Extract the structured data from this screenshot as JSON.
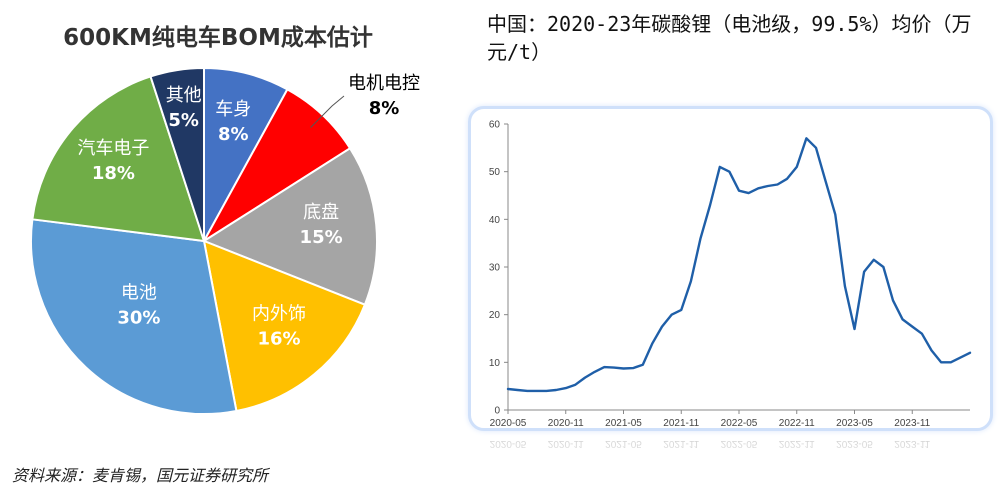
{
  "chart_data": [
    {
      "type": "pie",
      "title": "600KM纯电车BOM成本估计",
      "slices": [
        {
          "name": "车身",
          "value": 8,
          "label": "8%",
          "color": "#4472c4",
          "text_color": "#ffffff"
        },
        {
          "name": "电机电控",
          "value": 8,
          "label": "8%",
          "color": "#ff0000",
          "text_color": "#000000"
        },
        {
          "name": "底盘",
          "value": 15,
          "label": "15%",
          "color": "#a5a5a5",
          "text_color": "#ffffff"
        },
        {
          "name": "内外饰",
          "value": 16,
          "label": "16%",
          "color": "#ffc000",
          "text_color": "#ffffff"
        },
        {
          "name": "电池",
          "value": 30,
          "label": "30%",
          "color": "#5b9bd5",
          "text_color": "#ffffff"
        },
        {
          "name": "汽车电子",
          "value": 18,
          "label": "18%",
          "color": "#70ad47",
          "text_color": "#ffffff"
        },
        {
          "name": "其他",
          "value": 5,
          "label": "5%",
          "color": "#203864",
          "text_color": "#ffffff"
        }
      ]
    },
    {
      "type": "line",
      "title": "中国：2020-23年碳酸锂（电池级，99.5%）均价（万元/t）",
      "ylim": [
        0,
        60
      ],
      "yticks": [
        "0",
        "10",
        "20",
        "30",
        "40",
        "50",
        "60"
      ],
      "xticks": [
        "2020-05",
        "2020-11",
        "2021-05",
        "2021-11",
        "2022-05",
        "2022-11",
        "2023-05",
        "2023-11"
      ],
      "series_color": "#1f5fa8",
      "points": [
        [
          "2020-05",
          4.4
        ],
        [
          "2020-06",
          4.2
        ],
        [
          "2020-07",
          4.0
        ],
        [
          "2020-08",
          4.0
        ],
        [
          "2020-09",
          4.0
        ],
        [
          "2020-10",
          4.2
        ],
        [
          "2020-11",
          4.6
        ],
        [
          "2020-12",
          5.3
        ],
        [
          "2021-01",
          6.8
        ],
        [
          "2021-02",
          8.0
        ],
        [
          "2021-03",
          9.0
        ],
        [
          "2021-04",
          8.9
        ],
        [
          "2021-05",
          8.7
        ],
        [
          "2021-06",
          8.8
        ],
        [
          "2021-07",
          9.5
        ],
        [
          "2021-08",
          14.0
        ],
        [
          "2021-09",
          17.5
        ],
        [
          "2021-10",
          20.0
        ],
        [
          "2021-11",
          21.0
        ],
        [
          "2021-12",
          27.0
        ],
        [
          "2022-01",
          36.0
        ],
        [
          "2022-02",
          43.0
        ],
        [
          "2022-03",
          51.0
        ],
        [
          "2022-04",
          50.0
        ],
        [
          "2022-05",
          46.0
        ],
        [
          "2022-06",
          45.5
        ],
        [
          "2022-07",
          46.5
        ],
        [
          "2022-08",
          47.0
        ],
        [
          "2022-09",
          47.3
        ],
        [
          "2022-10",
          48.5
        ],
        [
          "2022-11",
          51.0
        ],
        [
          "2022-12",
          57.0
        ],
        [
          "2023-01",
          55.0
        ],
        [
          "2023-02",
          48.0
        ],
        [
          "2023-03",
          41.0
        ],
        [
          "2023-04",
          26.0
        ],
        [
          "2023-05",
          17.0
        ],
        [
          "2023-06",
          29.0
        ],
        [
          "2023-07",
          31.5
        ],
        [
          "2023-08",
          30.0
        ],
        [
          "2023-09",
          23.0
        ],
        [
          "2023-10",
          19.0
        ],
        [
          "2023-11",
          17.5
        ],
        [
          "2023-12",
          16.0
        ],
        [
          "2024-01",
          12.5
        ],
        [
          "2024-02",
          10.0
        ],
        [
          "2024-03",
          10.0
        ],
        [
          "2024-04",
          11.0
        ],
        [
          "2024-05",
          12.0
        ]
      ]
    }
  ],
  "source": "资料来源：麦肯锡，国元证券研究所"
}
